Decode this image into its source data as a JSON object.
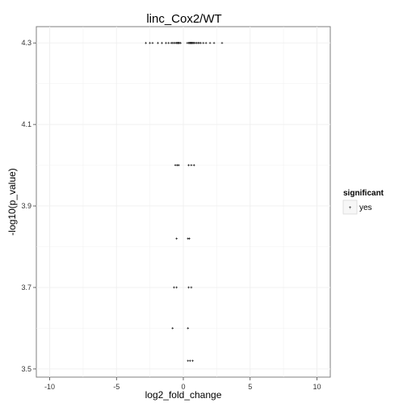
{
  "chart_data": {
    "type": "scatter",
    "title": "linc_Cox2/WT",
    "xlabel": "log2_fold_change",
    "ylabel": "-log10(p_value)",
    "xlim": [
      -11,
      11
    ],
    "ylim": [
      3.48,
      4.34
    ],
    "x_ticks": [
      -10,
      -5,
      0,
      5,
      10
    ],
    "y_ticks": [
      3.5,
      3.7,
      3.9,
      4.1,
      4.3
    ],
    "x_tick_labels": [
      "-10",
      "-5",
      "0",
      "5",
      "10"
    ],
    "y_tick_labels": [
      "3.5",
      "3.7",
      "3.9",
      "4.1",
      "4.3"
    ],
    "grid": true,
    "legend": {
      "title": "significant",
      "placement": "right",
      "entries": [
        {
          "label": "yes",
          "symbol": "x-mark"
        }
      ]
    },
    "series": [
      {
        "name": "yes",
        "points": [
          {
            "x": -2.8,
            "y": 4.3
          },
          {
            "x": -2.5,
            "y": 4.3
          },
          {
            "x": -2.3,
            "y": 4.3
          },
          {
            "x": -1.9,
            "y": 4.3
          },
          {
            "x": -1.6,
            "y": 4.3
          },
          {
            "x": -1.3,
            "y": 4.3
          },
          {
            "x": -1.1,
            "y": 4.3
          },
          {
            "x": -0.9,
            "y": 4.3
          },
          {
            "x": -0.8,
            "y": 4.3
          },
          {
            "x": -0.7,
            "y": 4.3
          },
          {
            "x": -0.6,
            "y": 4.3
          },
          {
            "x": -0.5,
            "y": 4.3
          },
          {
            "x": -0.45,
            "y": 4.3
          },
          {
            "x": -0.4,
            "y": 4.3
          },
          {
            "x": -0.35,
            "y": 4.3
          },
          {
            "x": -0.3,
            "y": 4.3
          },
          {
            "x": -0.2,
            "y": 4.3
          },
          {
            "x": 0.3,
            "y": 4.3
          },
          {
            "x": 0.4,
            "y": 4.3
          },
          {
            "x": 0.45,
            "y": 4.3
          },
          {
            "x": 0.5,
            "y": 4.3
          },
          {
            "x": 0.55,
            "y": 4.3
          },
          {
            "x": 0.6,
            "y": 4.3
          },
          {
            "x": 0.65,
            "y": 4.3
          },
          {
            "x": 0.7,
            "y": 4.3
          },
          {
            "x": 0.75,
            "y": 4.3
          },
          {
            "x": 0.8,
            "y": 4.3
          },
          {
            "x": 0.9,
            "y": 4.3
          },
          {
            "x": 1.0,
            "y": 4.3
          },
          {
            "x": 1.1,
            "y": 4.3
          },
          {
            "x": 1.2,
            "y": 4.3
          },
          {
            "x": 1.3,
            "y": 4.3
          },
          {
            "x": 1.5,
            "y": 4.3
          },
          {
            "x": 1.7,
            "y": 4.3
          },
          {
            "x": 2.0,
            "y": 4.3
          },
          {
            "x": 2.3,
            "y": 4.3
          },
          {
            "x": 2.9,
            "y": 4.3
          },
          {
            "x": -0.6,
            "y": 4.0
          },
          {
            "x": -0.45,
            "y": 4.0
          },
          {
            "x": -0.35,
            "y": 4.0
          },
          {
            "x": 0.4,
            "y": 4.0
          },
          {
            "x": 0.6,
            "y": 4.0
          },
          {
            "x": 0.8,
            "y": 4.0
          },
          {
            "x": -0.5,
            "y": 3.82
          },
          {
            "x": 0.35,
            "y": 3.82
          },
          {
            "x": 0.45,
            "y": 3.82
          },
          {
            "x": -0.7,
            "y": 3.7
          },
          {
            "x": -0.5,
            "y": 3.7
          },
          {
            "x": 0.4,
            "y": 3.7
          },
          {
            "x": 0.6,
            "y": 3.7
          },
          {
            "x": -0.8,
            "y": 3.6
          },
          {
            "x": 0.35,
            "y": 3.6
          },
          {
            "x": 0.35,
            "y": 3.52
          },
          {
            "x": 0.5,
            "y": 3.52
          },
          {
            "x": 0.7,
            "y": 3.52
          }
        ]
      }
    ]
  },
  "colors": {
    "background": "#ffffff",
    "grid": "#f0f0f0",
    "panel_border": "#7f7f7f",
    "axis_line": "#444444",
    "point": "#000000"
  }
}
